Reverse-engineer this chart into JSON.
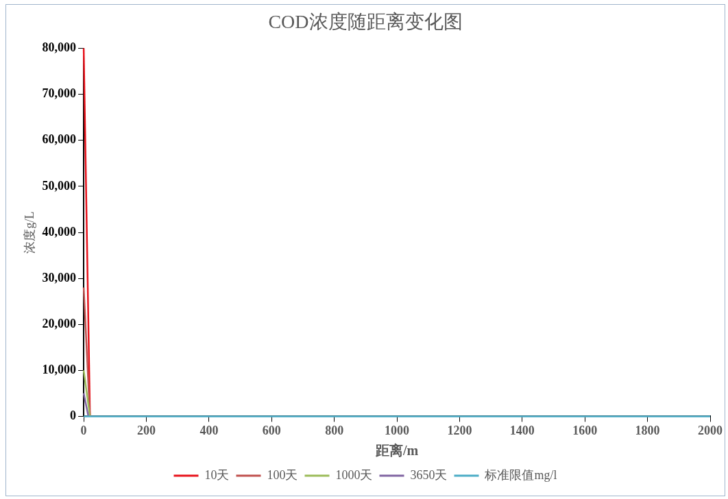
{
  "chart_data": {
    "type": "line",
    "title": "COD浓度随距离变化图",
    "xlabel": "距离/m",
    "ylabel": "浓度g/L",
    "xlim": [
      0,
      2000
    ],
    "xticks": [
      0,
      200,
      400,
      600,
      800,
      1000,
      1200,
      1400,
      1600,
      1800,
      2000
    ],
    "ylim": [
      0,
      80000
    ],
    "yticks": [
      {
        "value": 0,
        "label": "0"
      },
      {
        "value": 10000,
        "label": "10,000"
      },
      {
        "value": 20000,
        "label": "20,000"
      },
      {
        "value": 30000,
        "label": "30,000"
      },
      {
        "value": 40000,
        "label": "40,000"
      },
      {
        "value": 50000,
        "label": "50,000"
      },
      {
        "value": 60000,
        "label": "60,000"
      },
      {
        "value": 70000,
        "label": "70,000"
      },
      {
        "value": 80000,
        "label": "80,000"
      }
    ],
    "grid": false,
    "legend": "bottom",
    "marker": "none",
    "series": [
      {
        "name": "10天",
        "color": "#e8121b",
        "x": [
          0,
          20
        ],
        "values": [
          80000,
          0
        ]
      },
      {
        "name": "100天",
        "color": "#c0504d",
        "x": [
          0,
          20
        ],
        "values": [
          28000,
          0
        ]
      },
      {
        "name": "1000天",
        "color": "#9bbb59",
        "x": [
          0,
          20
        ],
        "values": [
          10000,
          0
        ]
      },
      {
        "name": "3650天",
        "color": "#8064a2",
        "x": [
          0,
          15
        ],
        "values": [
          5000,
          0
        ]
      },
      {
        "name": "标准限值mg/l",
        "color": "#4bacc6",
        "x": [
          0,
          2000
        ],
        "values": [
          0,
          0
        ]
      }
    ]
  }
}
